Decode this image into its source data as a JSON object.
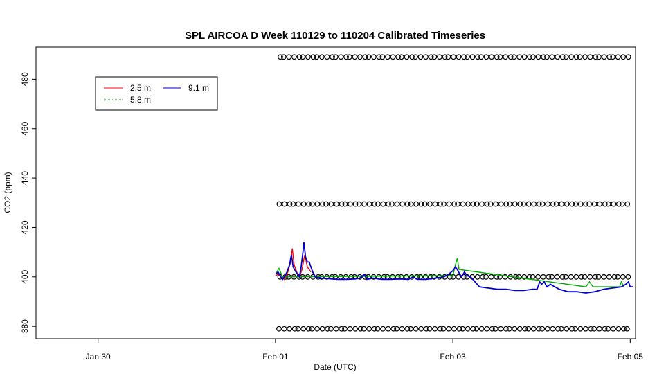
{
  "chart_data": {
    "type": "line",
    "title": "SPL AIRCOA D  Week 110129 to 110204  Calibrated Timeseries",
    "xlabel": "Date (UTC)",
    "ylabel": "CO2 (ppm)",
    "x_tick_labels": [
      "Jan 30",
      "Feb 01",
      "Feb 03",
      "Feb 05"
    ],
    "x_tick_days": [
      1,
      3,
      5,
      7
    ],
    "xlim_days": [
      0.3,
      7.06
    ],
    "x_day0": "2011-01-29",
    "yticks": [
      380,
      400,
      420,
      440,
      460,
      480
    ],
    "ylim": [
      375,
      493
    ],
    "grid": false,
    "legend": {
      "position": "top-left",
      "entries": [
        {
          "label": "2.5 m",
          "color": "#ff0000"
        },
        {
          "label": "5.8 m",
          "color": "#00aa00"
        },
        {
          "label": "9.1 m",
          "color": "#0000cc"
        }
      ]
    },
    "calibration_levels": [
      379,
      400,
      429.5,
      489
    ],
    "calibration_range_days": [
      3.04,
      7.0
    ],
    "series": [
      {
        "name": "2.5 m",
        "color": "#ff0000",
        "points": [
          [
            3.0,
            400.5
          ],
          [
            3.03,
            401
          ],
          [
            3.06,
            400
          ],
          [
            3.1,
            399
          ],
          [
            3.14,
            402
          ],
          [
            3.17,
            406
          ],
          [
            3.19,
            411.5
          ],
          [
            3.21,
            405
          ],
          [
            3.24,
            402
          ],
          [
            3.27,
            400
          ],
          [
            3.3,
            403
          ],
          [
            3.33,
            409
          ],
          [
            3.36,
            404
          ],
          [
            3.4,
            402
          ]
        ]
      },
      {
        "name": "5.8 m",
        "color": "#00aa00",
        "points": [
          [
            3.0,
            401
          ],
          [
            3.04,
            403.5
          ],
          [
            3.08,
            400
          ],
          [
            5.0,
            400.5
          ],
          [
            5.03,
            405
          ],
          [
            5.05,
            407.5
          ],
          [
            5.07,
            403
          ],
          [
            6.5,
            396
          ],
          [
            6.54,
            398
          ],
          [
            6.58,
            396
          ],
          [
            6.88,
            396
          ],
          [
            6.9,
            398
          ],
          [
            6.93,
            396
          ]
        ]
      },
      {
        "name": "9.1 m",
        "color": "#0000cc",
        "points": [
          [
            3.0,
            401
          ],
          [
            3.03,
            402
          ],
          [
            3.06,
            400
          ],
          [
            3.08,
            399
          ],
          [
            3.1,
            400
          ],
          [
            3.13,
            402
          ],
          [
            3.16,
            405
          ],
          [
            3.18,
            409
          ],
          [
            3.2,
            404
          ],
          [
            3.23,
            402
          ],
          [
            3.25,
            401
          ],
          [
            3.27,
            400
          ],
          [
            3.29,
            404
          ],
          [
            3.31,
            410
          ],
          [
            3.32,
            414
          ],
          [
            3.34,
            408
          ],
          [
            3.36,
            406
          ],
          [
            3.38,
            406
          ],
          [
            3.4,
            404
          ],
          [
            3.42,
            402
          ],
          [
            3.45,
            400
          ],
          [
            3.5,
            399.5
          ],
          [
            3.6,
            399.3
          ],
          [
            3.7,
            399
          ],
          [
            3.8,
            399
          ],
          [
            3.9,
            399.2
          ],
          [
            3.95,
            399.5
          ],
          [
            4.0,
            401
          ],
          [
            4.03,
            399
          ],
          [
            4.1,
            399.5
          ],
          [
            4.2,
            399
          ],
          [
            4.3,
            399
          ],
          [
            4.4,
            399.2
          ],
          [
            4.5,
            399
          ],
          [
            4.55,
            400
          ],
          [
            4.6,
            399
          ],
          [
            4.7,
            399
          ],
          [
            4.8,
            399.5
          ],
          [
            4.9,
            400
          ],
          [
            4.95,
            401
          ],
          [
            5.0,
            402.5
          ],
          [
            5.03,
            404
          ],
          [
            5.05,
            403
          ],
          [
            5.08,
            401
          ],
          [
            5.1,
            400
          ],
          [
            5.13,
            402
          ],
          [
            5.16,
            400.5
          ],
          [
            5.2,
            400
          ],
          [
            5.25,
            398
          ],
          [
            5.3,
            396
          ],
          [
            5.4,
            395.5
          ],
          [
            5.5,
            395
          ],
          [
            5.6,
            395
          ],
          [
            5.7,
            394.5
          ],
          [
            5.8,
            394.5
          ],
          [
            5.9,
            395
          ],
          [
            5.95,
            395
          ],
          [
            5.98,
            398
          ],
          [
            6.0,
            397
          ],
          [
            6.03,
            398
          ],
          [
            6.06,
            396
          ],
          [
            6.1,
            397
          ],
          [
            6.15,
            396
          ],
          [
            6.2,
            395
          ],
          [
            6.25,
            394.5
          ],
          [
            6.3,
            394
          ],
          [
            6.4,
            394
          ],
          [
            6.5,
            393.5
          ],
          [
            6.6,
            394
          ],
          [
            6.7,
            395
          ],
          [
            6.8,
            395.5
          ],
          [
            6.9,
            396
          ],
          [
            6.95,
            397
          ],
          [
            6.98,
            398
          ],
          [
            7.0,
            396
          ],
          [
            7.03,
            396
          ]
        ]
      }
    ]
  }
}
